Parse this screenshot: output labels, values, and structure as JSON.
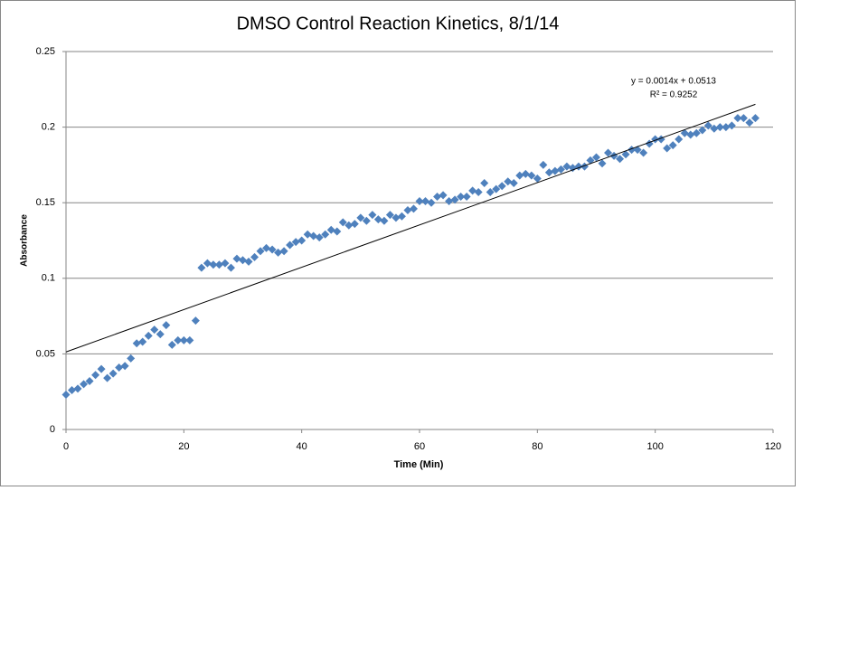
{
  "chart_data": {
    "type": "scatter",
    "title": "DMSO Control Reaction Kinetics, 8/1/14",
    "xlabel": "Time (Min)",
    "ylabel": "Absorbance",
    "xlim": [
      0,
      120
    ],
    "ylim": [
      0,
      0.25
    ],
    "xticks": [
      0,
      20,
      40,
      60,
      80,
      100,
      120
    ],
    "yticks": [
      0,
      0.05,
      0.1,
      0.15,
      0.2,
      0.25
    ],
    "grid": true,
    "series": [
      {
        "name": "Absorbance",
        "color": "#4f81bd",
        "x": [
          0,
          1,
          2,
          3,
          4,
          5,
          6,
          7,
          8,
          9,
          10,
          11,
          12,
          13,
          14,
          15,
          16,
          17,
          18,
          19,
          20,
          21,
          22,
          23,
          24,
          25,
          26,
          27,
          28,
          29,
          30,
          31,
          32,
          33,
          34,
          35,
          36,
          37,
          38,
          39,
          40,
          41,
          42,
          43,
          44,
          45,
          46,
          47,
          48,
          49,
          50,
          51,
          52,
          53,
          54,
          55,
          56,
          57,
          58,
          59,
          60,
          61,
          62,
          63,
          64,
          65,
          66,
          67,
          68,
          69,
          70,
          71,
          72,
          73,
          74,
          75,
          76,
          77,
          78,
          79,
          80,
          81,
          82,
          83,
          84,
          85,
          86,
          87,
          88,
          89,
          90,
          91,
          92,
          93,
          94,
          95,
          96,
          97,
          98,
          99,
          100,
          101,
          102,
          103,
          104,
          105,
          106,
          107,
          108,
          109,
          110,
          111,
          112,
          113,
          114,
          115,
          116,
          117
        ],
        "values": [
          0.023,
          0.026,
          0.027,
          0.03,
          0.032,
          0.036,
          0.04,
          0.034,
          0.037,
          0.041,
          0.042,
          0.047,
          0.057,
          0.058,
          0.062,
          0.066,
          0.063,
          0.069,
          0.056,
          0.059,
          0.059,
          0.059,
          0.072,
          0.107,
          0.11,
          0.109,
          0.109,
          0.11,
          0.107,
          0.113,
          0.112,
          0.111,
          0.114,
          0.118,
          0.12,
          0.119,
          0.117,
          0.118,
          0.122,
          0.124,
          0.125,
          0.129,
          0.128,
          0.127,
          0.129,
          0.132,
          0.131,
          0.137,
          0.135,
          0.136,
          0.14,
          0.138,
          0.142,
          0.139,
          0.138,
          0.142,
          0.14,
          0.141,
          0.145,
          0.146,
          0.151,
          0.151,
          0.15,
          0.154,
          0.155,
          0.151,
          0.152,
          0.154,
          0.154,
          0.158,
          0.157,
          0.163,
          0.157,
          0.159,
          0.161,
          0.164,
          0.163,
          0.168,
          0.169,
          0.168,
          0.166,
          0.175,
          0.17,
          0.171,
          0.172,
          0.174,
          0.173,
          0.174,
          0.174,
          0.178,
          0.18,
          0.176,
          0.183,
          0.181,
          0.179,
          0.182,
          0.185,
          0.185,
          0.183,
          0.189,
          0.192,
          0.192,
          0.186,
          0.188,
          0.192,
          0.196,
          0.195,
          0.196,
          0.198,
          0.201,
          0.199,
          0.2,
          0.2,
          0.201,
          0.206,
          0.206,
          0.203,
          0.206
        ]
      }
    ],
    "trendline": {
      "slope": 0.0014,
      "intercept": 0.0513,
      "equation": "y = 0.0014x + 0.0513",
      "r2": "R² = 0.9252"
    }
  }
}
